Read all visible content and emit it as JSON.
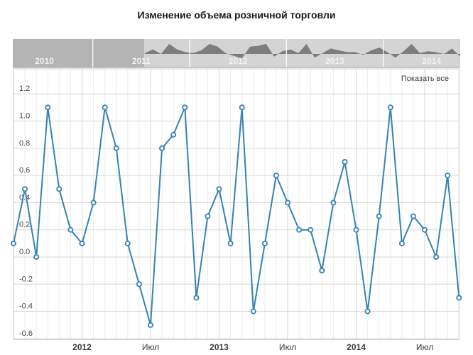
{
  "title": "Изменение объема розничной торговли",
  "show_all_label": "Показать все",
  "colors": {
    "line": "#3483b2",
    "marker_fill": "#ffffff",
    "grid_major": "#d6d6d6",
    "grid_minor": "#ededed",
    "axis_border": "#c8c8c8",
    "axis_label": "#4a4a4a",
    "nav_mask": "#b4b4b4",
    "nav_selected_bg": "#d4d4d4",
    "nav_area": "#7d7d7d",
    "nav_separator": "#ffffff",
    "nav_bottom_border": "#a0a0a0",
    "nav_year_label": "#f2f2f2",
    "title_color": "#1a1a1a",
    "show_all_color": "#3c3c3c"
  },
  "navigator": {
    "year_labels": [
      "2010",
      "2011",
      "2012",
      "2013",
      "2014"
    ],
    "selected_start": "2011-07",
    "selected_end": "2014-10"
  },
  "y_axis": {
    "tick_labels": [
      "1.2",
      "1.0",
      "0.8",
      "0.6",
      "0.4",
      "0.2",
      "0.0",
      "-0.2",
      "-0.4",
      "-0.6"
    ]
  },
  "x_axis": {
    "tick_labels": [
      {
        "label": "2012",
        "bold": true
      },
      {
        "label": "Июл",
        "bold": false
      },
      {
        "label": "2013",
        "bold": true
      },
      {
        "label": "Июл",
        "bold": false
      },
      {
        "label": "2014",
        "bold": true
      },
      {
        "label": "Июл",
        "bold": false
      }
    ]
  },
  "chart_data": {
    "type": "line",
    "title": "Изменение объема розничной торговли",
    "xlabel": "",
    "ylabel": "",
    "ylim": [
      -0.6,
      1.2
    ],
    "ytick_step": 0.2,
    "grid": true,
    "legend": "none",
    "series_color": "#3483b2",
    "x": [
      "2011-07",
      "2011-08",
      "2011-09",
      "2011-10",
      "2011-11",
      "2011-12",
      "2012-01",
      "2012-02",
      "2012-03",
      "2012-04",
      "2012-05",
      "2012-06",
      "2012-07",
      "2012-08",
      "2012-09",
      "2012-10",
      "2012-11",
      "2012-12",
      "2013-01",
      "2013-02",
      "2013-03",
      "2013-04",
      "2013-05",
      "2013-06",
      "2013-07",
      "2013-08",
      "2013-09",
      "2013-10",
      "2013-11",
      "2013-12",
      "2014-01",
      "2014-02",
      "2014-03",
      "2014-04",
      "2014-05",
      "2014-06",
      "2014-07",
      "2014-08",
      "2014-09",
      "2014-10"
    ],
    "values": [
      0.1,
      0.5,
      0.0,
      1.1,
      0.5,
      0.2,
      0.1,
      0.4,
      1.1,
      0.8,
      0.1,
      -0.2,
      -0.5,
      0.8,
      0.9,
      1.1,
      -0.3,
      0.3,
      0.5,
      0.1,
      1.1,
      -0.4,
      0.1,
      0.6,
      0.4,
      0.2,
      0.2,
      -0.1,
      0.4,
      0.7,
      0.2,
      -0.4,
      0.3,
      1.1,
      0.1,
      0.3,
      0.2,
      0.0,
      0.6,
      -0.3
    ],
    "navigator_years_shown": [
      "2010",
      "2011",
      "2012",
      "2013",
      "2014"
    ],
    "navigator_selected_range": [
      "2011-07",
      "2014-10"
    ]
  }
}
